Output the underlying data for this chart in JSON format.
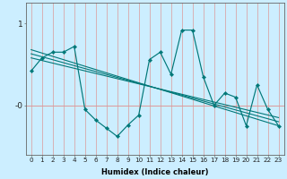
{
  "xlabel": "Humidex (Indice chaleur)",
  "bg_color": "#cceeff",
  "line_color": "#007878",
  "grid_color": "#dd9999",
  "x_ticks": [
    0,
    1,
    2,
    3,
    4,
    5,
    6,
    7,
    8,
    9,
    10,
    11,
    12,
    13,
    14,
    15,
    16,
    17,
    18,
    19,
    20,
    21,
    22,
    23
  ],
  "y_ticks_labels": [
    "1",
    "-0"
  ],
  "y_ticks_pos": [
    1.0,
    0.0
  ],
  "ylim": [
    -0.6,
    1.25
  ],
  "xlim": [
    -0.5,
    23.5
  ],
  "main_line_x": [
    0,
    1,
    2,
    3,
    4,
    5,
    6,
    7,
    8,
    9,
    10,
    11,
    12,
    13,
    14,
    15,
    16,
    17,
    18,
    19,
    20,
    21,
    22,
    23
  ],
  "main_line_y": [
    0.42,
    0.58,
    0.65,
    0.65,
    0.72,
    -0.05,
    -0.18,
    -0.28,
    -0.38,
    -0.24,
    -0.12,
    0.56,
    0.65,
    0.38,
    0.92,
    0.92,
    0.35,
    0.0,
    0.15,
    0.1,
    -0.25,
    0.25,
    -0.05,
    -0.25
  ],
  "trend1_y0": 0.68,
  "trend1_y1": -0.25,
  "trend2_y0": 0.63,
  "trend2_y1": -0.2,
  "trend3_y0": 0.58,
  "trend3_y1": -0.15,
  "zero_line_y": 0.0,
  "xlabel_fontsize": 6.0,
  "xlabel_fontweight": "bold",
  "tick_fontsize": 5.2,
  "ytick_fontsize": 6.5,
  "figsize": [
    3.2,
    2.0
  ],
  "dpi": 100
}
